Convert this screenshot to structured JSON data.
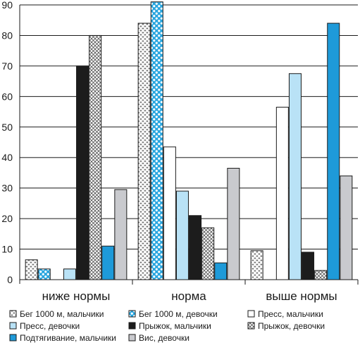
{
  "chart_data": {
    "type": "bar",
    "title": "",
    "xlabel": "",
    "ylabel": "",
    "ylim": [
      0,
      90
    ],
    "yticks": [
      0,
      10,
      20,
      30,
      40,
      50,
      60,
      70,
      80,
      90
    ],
    "grid": true,
    "legend_position": "bottom",
    "categories": [
      "ниже нормы",
      "норма",
      "выше нормы"
    ],
    "series": [
      {
        "name": "Бег 1000 м, мальчики",
        "values": [
          6.5,
          84,
          9.5
        ],
        "fill": "#ffffff",
        "pattern": "brick"
      },
      {
        "name": "Бег 1000 м, девочки",
        "values": [
          3.5,
          91,
          0
        ],
        "fill": "#29a6df",
        "pattern": "dots"
      },
      {
        "name": "Пресс, мальчики",
        "values": [
          0,
          43.5,
          56.5
        ],
        "fill": "#ffffff",
        "pattern": "none"
      },
      {
        "name": "Пресс, девочки",
        "values": [
          3.5,
          29,
          67.5
        ],
        "fill": "#b9e2f6",
        "pattern": "none"
      },
      {
        "name": "Прыжок, мальчики",
        "values": [
          70,
          21,
          9
        ],
        "fill": "#1c1c1c",
        "pattern": "none"
      },
      {
        "name": "Прыжок, девочки",
        "values": [
          80,
          17,
          3
        ],
        "fill": "#ffffff",
        "pattern": "crosshatch"
      },
      {
        "name": "Подтягивание, мальчики",
        "values": [
          11,
          5.5,
          84
        ],
        "fill": "#1e9ad9",
        "pattern": "none"
      },
      {
        "name": "Вис, девочки",
        "values": [
          29.5,
          36.5,
          34
        ],
        "fill": "#c9cace",
        "pattern": "none"
      }
    ]
  }
}
